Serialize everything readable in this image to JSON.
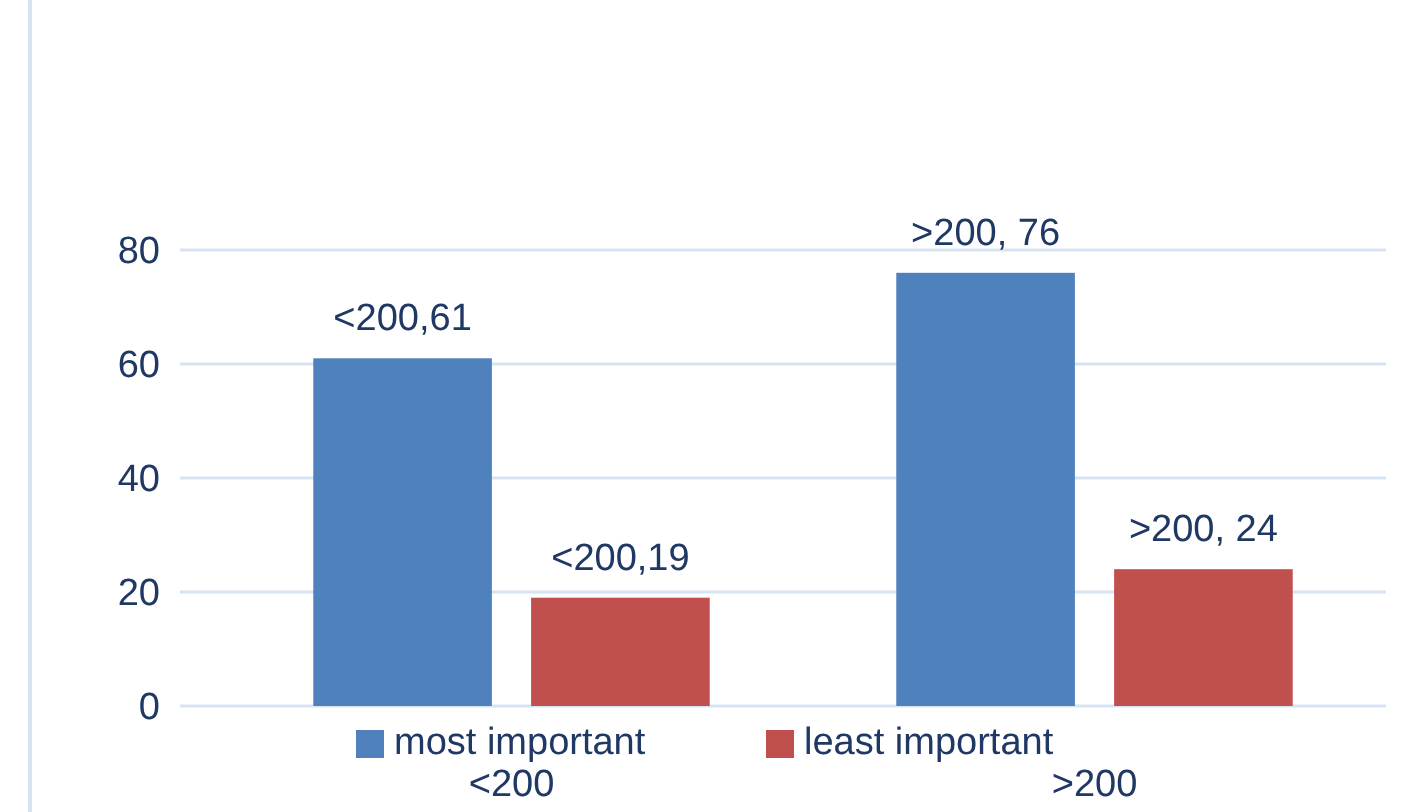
{
  "chart_data": {
    "type": "bar",
    "categories": [
      "<200",
      ">200"
    ],
    "series": [
      {
        "name": "most important",
        "color": "#4f81bd",
        "values": [
          61,
          76
        ],
        "value_labels": [
          "<200,61",
          ">200, 76"
        ]
      },
      {
        "name": "least important",
        "color": "#c0504d",
        "values": [
          19,
          24
        ],
        "value_labels": [
          "<200,19",
          ">200, 24"
        ]
      }
    ],
    "ylim": [
      0,
      80
    ],
    "yticks": [
      0,
      20,
      40,
      60,
      80
    ],
    "grid": "y",
    "legend": "bottom"
  }
}
